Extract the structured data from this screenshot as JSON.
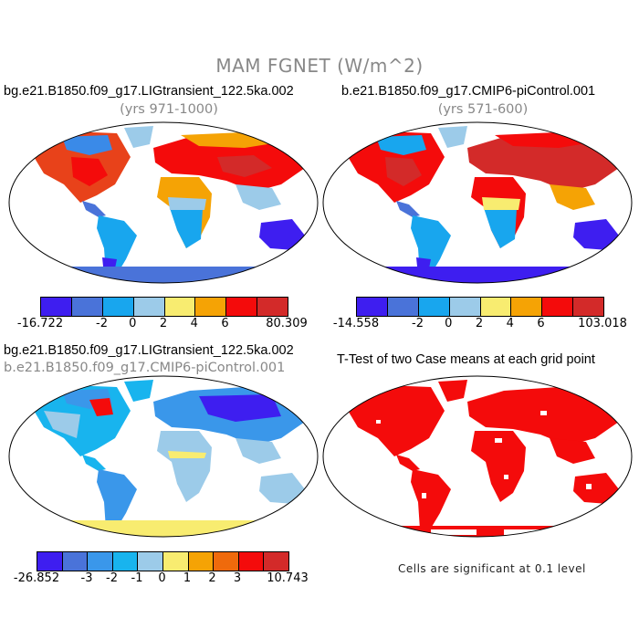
{
  "figure": {
    "title": "MAM FGNET (W/m^2)"
  },
  "panels": {
    "top_left": {
      "title": "bg.e21.B1850.f09_g17.LIGtransient_122.5ka.002",
      "subtitle": "(yrs 971-1000)",
      "colorbar": {
        "colors": [
          "#3e1ef0",
          "#4a73d9",
          "#18a6ee",
          "#9ccbe9",
          "#f8ec70",
          "#f5a305",
          "#f40b0b",
          "#d32a29"
        ],
        "labels": [
          "-16.722",
          "-2",
          "0",
          "2",
          "4",
          "6",
          "80.309"
        ]
      }
    },
    "top_right": {
      "title": "b.e21.B1850.f09_g17.CMIP6-piControl.001",
      "subtitle": "(yrs 571-600)",
      "colorbar": {
        "colors": [
          "#3e1ef0",
          "#4a73d9",
          "#18a6ee",
          "#9ccbe9",
          "#f8ec70",
          "#f5a305",
          "#f40b0b",
          "#d32a29"
        ],
        "labels": [
          "-14.558",
          "-2",
          "0",
          "2",
          "4",
          "6",
          "103.018"
        ]
      }
    },
    "bottom_left": {
      "title": "bg.e21.B1850.f09_g17.LIGtransient_122.5ka.002",
      "subtitle": "b.e21.B1850.f09_g17.CMIP6-piControl.001",
      "colorbar": {
        "colors": [
          "#3e1ef0",
          "#4a73d9",
          "#3a97ea",
          "#18b4ee",
          "#9ccbe9",
          "#f8ec70",
          "#f5a305",
          "#ef6a0c",
          "#f40b0b",
          "#d32a29"
        ],
        "labels": [
          "-26.852",
          "-3",
          "-2",
          "-1",
          "0",
          "1",
          "2",
          "3",
          "10.743"
        ]
      }
    },
    "bottom_right": {
      "title": "T-Test of two Case means at each grid point",
      "note": "Cells are significant at 0.1 level"
    }
  }
}
